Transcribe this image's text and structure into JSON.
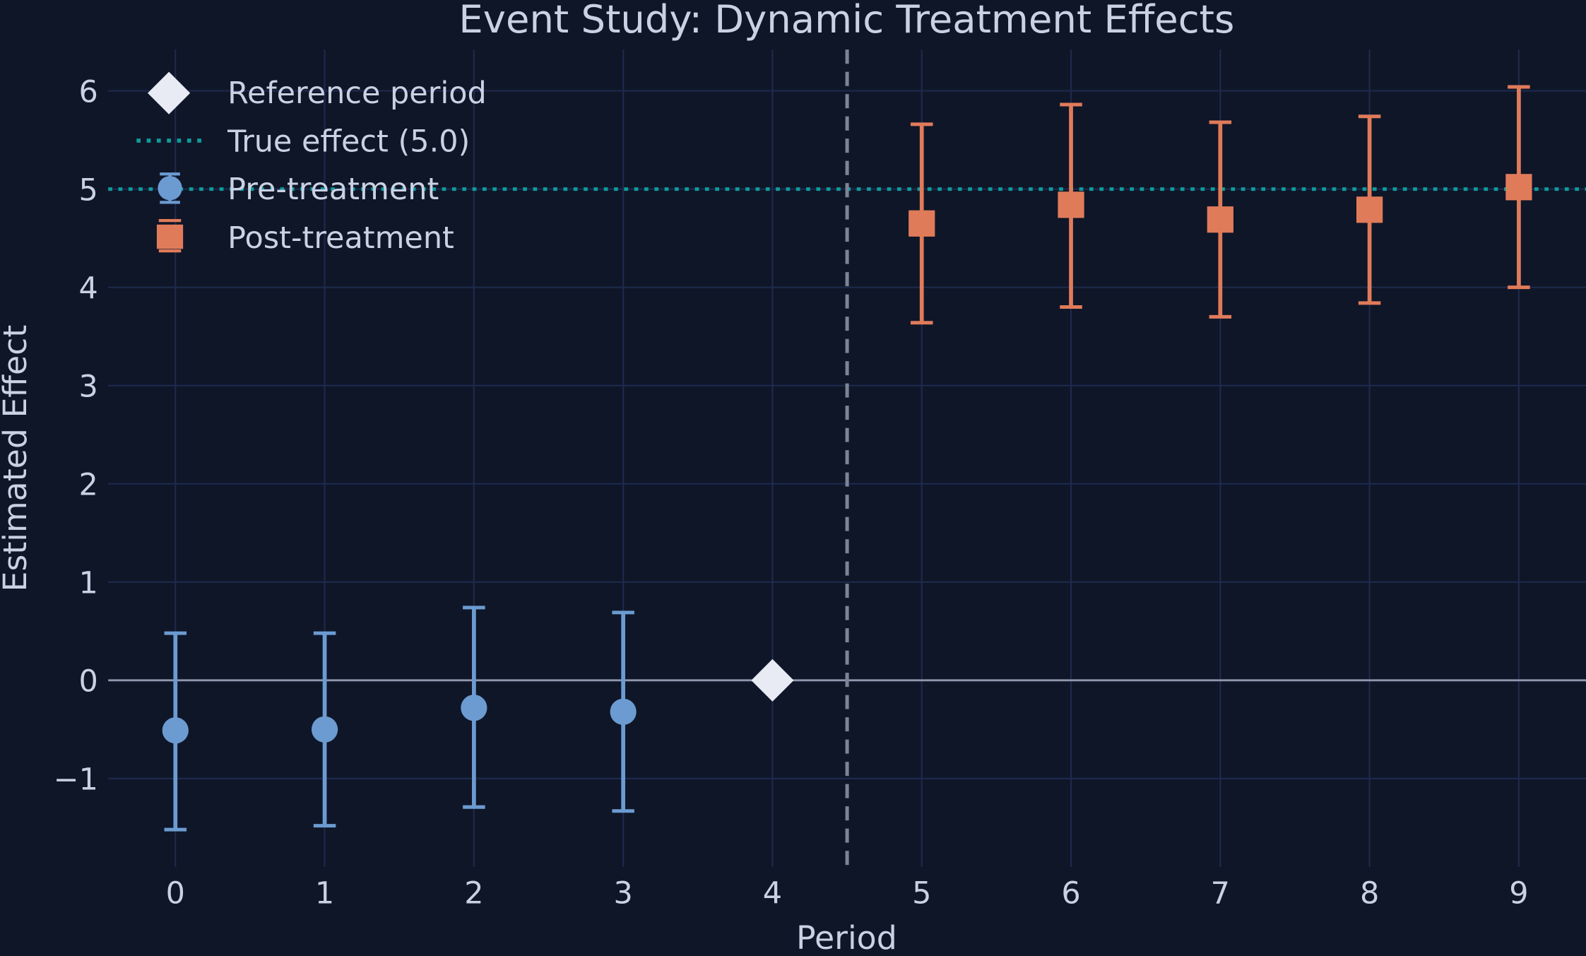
{
  "chart_data": {
    "type": "scatter",
    "title": "Event Study: Dynamic Treatment Effects",
    "xlabel": "Period",
    "ylabel": "Estimated Effect",
    "xlim": [
      -0.45,
      9.45
    ],
    "ylim": [
      -1.9,
      6.42
    ],
    "xticks": [
      "0",
      "1",
      "2",
      "3",
      "4",
      "5",
      "6",
      "7",
      "8",
      "9"
    ],
    "yticks": [
      "−1",
      "0",
      "1",
      "2",
      "3",
      "4",
      "5",
      "6"
    ],
    "ytick_values": [
      -1,
      0,
      1,
      2,
      3,
      4,
      5,
      6
    ],
    "grid": true,
    "legend_position": "top-left",
    "series": [
      {
        "name": "Pre-treatment",
        "marker": "circle",
        "color": "#6b9bd1",
        "x": [
          0,
          1,
          2,
          3
        ],
        "y": [
          -0.51,
          -0.5,
          -0.28,
          -0.32
        ],
        "err_low": [
          -1.52,
          -1.48,
          -1.29,
          -1.33
        ],
        "err_high": [
          0.48,
          0.48,
          0.74,
          0.69
        ]
      },
      {
        "name": "Post-treatment",
        "marker": "square",
        "color": "#e07b5a",
        "x": [
          5,
          6,
          7,
          8,
          9
        ],
        "y": [
          4.65,
          4.84,
          4.69,
          4.79,
          5.02
        ],
        "err_low": [
          3.64,
          3.8,
          3.7,
          3.84,
          4.0
        ],
        "err_high": [
          5.66,
          5.86,
          5.68,
          5.74,
          6.04
        ]
      },
      {
        "name": "Reference period",
        "marker": "diamond",
        "color": "#e8ebf4",
        "x": [
          4
        ],
        "y": [
          0
        ]
      }
    ],
    "reference_lines": [
      {
        "name": "True effect (5.0)",
        "orientation": "horizontal",
        "value": 5.0,
        "style": "dotted",
        "color": "#0f9b9b"
      },
      {
        "orientation": "horizontal",
        "value": 0,
        "style": "solid",
        "color": "#8f98ad"
      },
      {
        "orientation": "vertical",
        "value": 4.5,
        "style": "dashed",
        "color": "#7d8496"
      }
    ],
    "legend": [
      "Reference period",
      "True effect (5.0)",
      "Pre-treatment",
      "Post-treatment"
    ]
  }
}
